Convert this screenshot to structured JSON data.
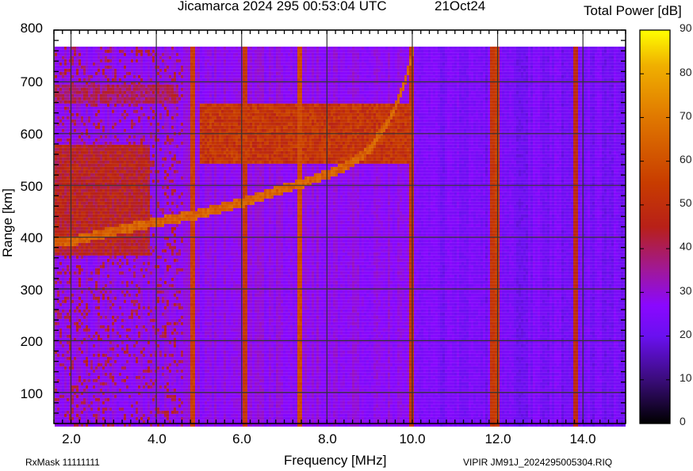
{
  "header": {
    "title": "Jicamarca 2024 295 00:53:04 UTC",
    "date": "21Oct24",
    "colorbar_title": "Total Power [dB]"
  },
  "footer": {
    "rxmask": "RxMask 11111111",
    "filename": "VIPIR  JM91J_2024295005304.RIQ"
  },
  "chart_data": {
    "type": "heatmap",
    "title": "Jicamarca 2024 295 00:53:04 UTC  21Oct24",
    "xlabel": "Frequency [MHz]",
    "ylabel": "Range [km]",
    "colorbar_label": "Total Power [dB]",
    "xlim": [
      1.6,
      15.0
    ],
    "ylim": [
      40,
      800
    ],
    "data_range_top_km": 768,
    "clim": [
      0,
      90
    ],
    "grid": true,
    "x_ticks": [
      "2.0",
      "4.0",
      "6.0",
      "8.0",
      "10.0",
      "12.0",
      "14.0"
    ],
    "x_tick_values": [
      2,
      4,
      6,
      8,
      10,
      12,
      14
    ],
    "y_ticks": [
      "100",
      "200",
      "300",
      "400",
      "500",
      "600",
      "700",
      "800"
    ],
    "y_tick_values": [
      100,
      200,
      300,
      400,
      500,
      600,
      700,
      800
    ],
    "colorbar_ticks": [
      "0",
      "10",
      "20",
      "30",
      "40",
      "50",
      "60",
      "70",
      "80",
      "90"
    ],
    "colormap": [
      {
        "db": 0,
        "color": "#000000"
      },
      {
        "db": 10,
        "color": "#3a0c7a"
      },
      {
        "db": 20,
        "color": "#6a10f0"
      },
      {
        "db": 27,
        "color": "#8a08ff"
      },
      {
        "db": 35,
        "color": "#a0189a"
      },
      {
        "db": 45,
        "color": "#b82018"
      },
      {
        "db": 55,
        "color": "#c83c00"
      },
      {
        "db": 70,
        "color": "#e07800"
      },
      {
        "db": 82,
        "color": "#f0b000"
      },
      {
        "db": 90,
        "color": "#ffff00"
      }
    ],
    "background_db": 26,
    "background_by_band": [
      {
        "f_start": 1.6,
        "f_end": 10.0,
        "db": 28
      },
      {
        "f_start": 10.0,
        "f_end": 15.0,
        "db": 23
      }
    ],
    "interference_lines_mhz": [
      {
        "f": 4.82,
        "db": 55
      },
      {
        "f": 6.05,
        "db": 52
      },
      {
        "f": 7.35,
        "db": 58
      },
      {
        "f": 9.95,
        "db": 52
      },
      {
        "f": 11.85,
        "db": 52
      },
      {
        "f": 11.95,
        "db": 55
      },
      {
        "f": 13.8,
        "db": 48
      }
    ],
    "traces": [
      {
        "name": "F-layer O-mode trace",
        "db": 60,
        "points": [
          [
            1.6,
            392
          ],
          [
            2.0,
            395
          ],
          [
            2.4,
            403
          ],
          [
            3.0,
            415
          ],
          [
            4.0,
            432
          ],
          [
            5.0,
            448
          ],
          [
            6.0,
            470
          ],
          [
            7.0,
            497
          ],
          [
            7.5,
            510
          ],
          [
            8.0,
            525
          ],
          [
            8.5,
            543
          ],
          [
            9.0,
            575
          ],
          [
            9.5,
            640
          ],
          [
            9.8,
            700
          ],
          [
            10.0,
            768
          ]
        ]
      }
    ],
    "spread_regions": [
      {
        "name": "spread-F upper",
        "f_start": 5.0,
        "f_end": 10.0,
        "range_low": 545,
        "range_high": 660,
        "db": 52
      },
      {
        "name": "low-frequency spread echo",
        "f_start": 1.6,
        "f_end": 3.8,
        "range_low": 370,
        "range_high": 580,
        "db": 45
      },
      {
        "name": "upper diffuse",
        "f_start": 1.6,
        "f_end": 4.5,
        "range_low": 660,
        "range_high": 700,
        "db": 38
      }
    ]
  },
  "legend_position": "right colorbar"
}
